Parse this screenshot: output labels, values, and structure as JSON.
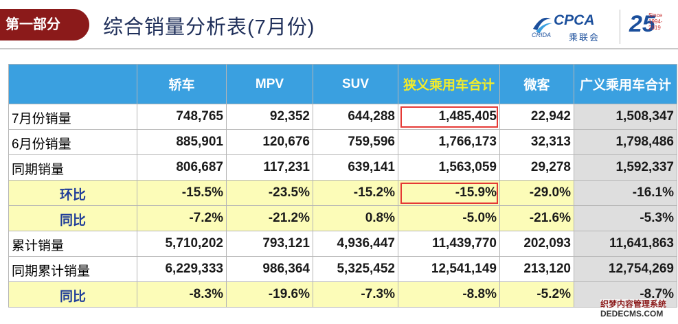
{
  "header": {
    "section_label": "第一部分",
    "title": "综合销量分析表(7月份)"
  },
  "logos": {
    "cpca_text": "CPCA",
    "cpca_cn": "乘联会",
    "cpca_small": "CRIDA",
    "anniv_number": "25",
    "anniv_caption": "Since 1994-2019"
  },
  "table": {
    "columns": [
      "",
      "轿车",
      "MPV",
      "SUV",
      "狭义乘用车合计",
      "微客",
      "广义乘用车合计"
    ],
    "rows": [
      {
        "label": "7月份销量",
        "cells": [
          "748,765",
          "92,352",
          "644,288",
          "1,485,405",
          "22,942",
          "1,508,347"
        ]
      },
      {
        "label": "6月份销量",
        "cells": [
          "885,901",
          "120,676",
          "759,596",
          "1,766,173",
          "32,313",
          "1,798,486"
        ]
      },
      {
        "label": "同期销量",
        "cells": [
          "806,687",
          "117,231",
          "639,141",
          "1,563,059",
          "29,278",
          "1,592,337"
        ]
      },
      {
        "label": "环比",
        "cells": [
          "-15.5%",
          "-23.5%",
          "-15.2%",
          "-15.9%",
          "-29.0%",
          "-16.1%"
        ]
      },
      {
        "label": "同比",
        "cells": [
          "-7.2%",
          "-21.2%",
          "0.8%",
          "-5.0%",
          "-21.6%",
          "-5.3%"
        ]
      },
      {
        "label": "累计销量",
        "cells": [
          "5,710,202",
          "793,121",
          "4,936,447",
          "11,439,770",
          "202,093",
          "11,641,863"
        ]
      },
      {
        "label": "同期累计销量",
        "cells": [
          "6,229,333",
          "986,364",
          "5,325,452",
          "12,541,149",
          "213,120",
          "12,754,269"
        ]
      },
      {
        "label": "同比",
        "cells": [
          "-8.3%",
          "-19.6%",
          "-7.3%",
          "-8.8%",
          "-5.2%",
          "-8.7%"
        ]
      }
    ]
  },
  "watermark": {
    "line1": "织梦内容管理系统",
    "line2": "DEDECMS.COM"
  },
  "colors": {
    "header_bg": "#3aa0e0",
    "highlight_header_text": "#f3ec2a",
    "ratio_row_bg": "#fcfcb8",
    "total_col_bg": "#dedede",
    "box_red": "#e53935",
    "section_tab": "#8b1a1a"
  }
}
